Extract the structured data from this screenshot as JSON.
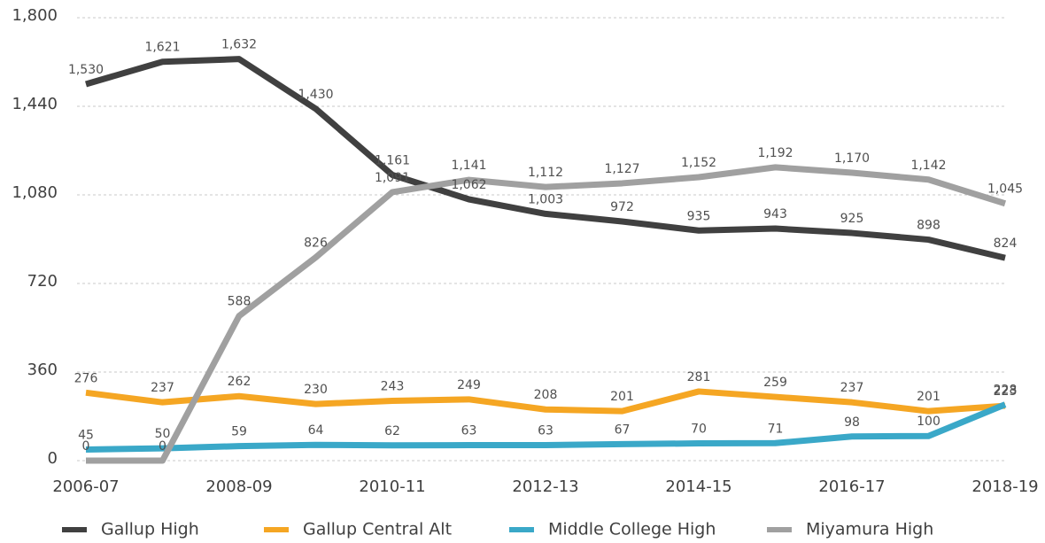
{
  "chart_data": {
    "type": "line",
    "categories": [
      "2006-07",
      null,
      "2008-09",
      null,
      "2010-11",
      null,
      "2012-13",
      null,
      "2014-15",
      null,
      "2016-17",
      null,
      "2018-19"
    ],
    "series": [
      {
        "name": "Gallup High",
        "color": "#404040",
        "values": [
          1530,
          1621,
          1632,
          1430,
          1161,
          1062,
          1003,
          972,
          935,
          943,
          925,
          898,
          824
        ],
        "value_labels": [
          "1,530",
          "1,621",
          "1,632",
          "1,430",
          "1,161",
          "1,062",
          "1,003",
          "972",
          "935",
          "943",
          "925",
          "898",
          "824"
        ]
      },
      {
        "name": "Gallup Central Alt",
        "color": "#f5a623",
        "values": [
          276,
          237,
          262,
          230,
          243,
          249,
          208,
          201,
          281,
          259,
          237,
          201,
          223
        ],
        "value_labels": [
          "276",
          "237",
          "262",
          "230",
          "243",
          "249",
          "208",
          "201",
          "281",
          "259",
          "237",
          "201",
          "223"
        ]
      },
      {
        "name": "Middle College High",
        "color": "#3aa8c8",
        "values": [
          45,
          50,
          59,
          64,
          62,
          63,
          63,
          67,
          70,
          71,
          98,
          100,
          228
        ],
        "value_labels": [
          "45",
          "50",
          "59",
          "64",
          "62",
          "63",
          "63",
          "67",
          "70",
          "71",
          "98",
          "100",
          "228"
        ]
      },
      {
        "name": "Miyamura High",
        "color": "#a0a0a0",
        "values": [
          0,
          0,
          588,
          826,
          1091,
          1141,
          1112,
          1127,
          1152,
          1192,
          1170,
          1142,
          1045
        ],
        "value_labels": [
          "0",
          "0",
          "588",
          "826",
          "1,091",
          "1,141",
          "1,112",
          "1,127",
          "1,152",
          "1,192",
          "1,170",
          "1,142",
          "1,045"
        ]
      }
    ],
    "ylim": [
      0,
      1800
    ],
    "yticks": [
      0,
      360,
      720,
      {
        "value": 1080,
        "label": "1,080"
      },
      {
        "value": 1440,
        "label": "1,440"
      },
      {
        "value": 1800,
        "label": "1,800"
      }
    ],
    "grid": true,
    "legend": "bottom"
  }
}
